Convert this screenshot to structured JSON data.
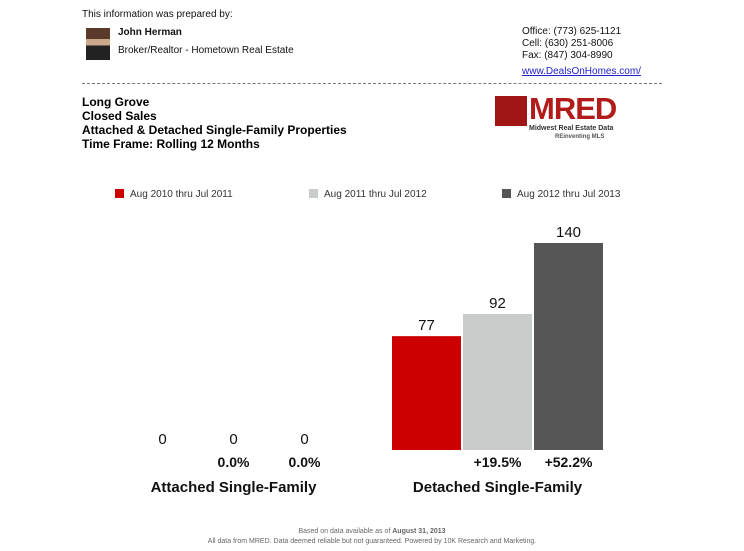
{
  "header": {
    "prepared_by": "This information was prepared by:",
    "agent_name": "John Herman",
    "agent_title": "Broker/Realtor - Hometown Real Estate",
    "office": "Office: (773) 625-1121",
    "cell": "Cell: (630) 251-8006",
    "fax": "Fax: (847) 304-8990",
    "website": "www.DealsOnHomes.com/"
  },
  "report": {
    "location": "Long Grove",
    "metric": "Closed Sales",
    "property_types": "Attached & Detached Single-Family Properties",
    "time_frame": "Time Frame: Rolling 12 Months"
  },
  "logo": {
    "name": "MRED",
    "tagline": "Midwest Real Estate Data",
    "sub": "REinventing MLS"
  },
  "footer": {
    "line1_prefix": "Based on data available as of ",
    "line1_date": "August 31, 2013",
    "line2": "All data from MRED. Data deemed reliable but not guaranteed. Powered by 10K Research and Marketing."
  },
  "chart_data": {
    "type": "bar",
    "categories": [
      "Attached Single-Family",
      "Detached Single-Family"
    ],
    "series": [
      {
        "name": "Aug 2010 thru Jul 2011",
        "color": "#cc0000",
        "values": [
          0,
          77
        ],
        "changes": [
          "",
          ""
        ]
      },
      {
        "name": "Aug 2011 thru Jul 2012",
        "color": "#c8cdcb",
        "values": [
          0,
          92
        ],
        "changes": [
          "0.0%",
          "+19.5%"
        ]
      },
      {
        "name": "Aug 2012 thru Jul 2013",
        "color": "#555555",
        "values": [
          0,
          140
        ],
        "changes": [
          "0.0%",
          "+52.2%"
        ]
      }
    ],
    "ylim": [
      0,
      140
    ],
    "legend": "top",
    "grid": false
  }
}
